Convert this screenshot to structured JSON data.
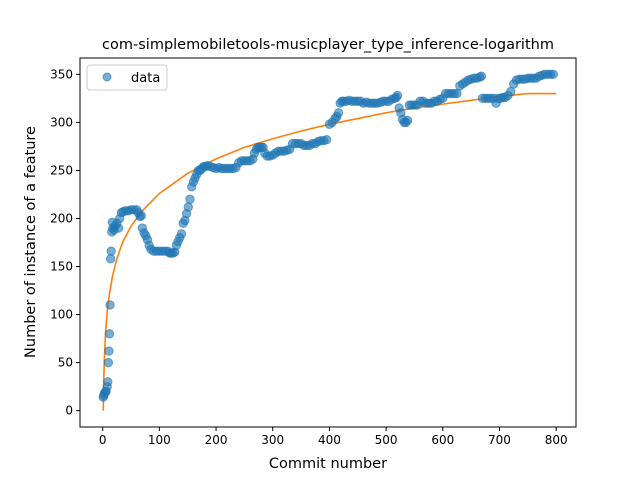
{
  "chart_data": {
    "type": "scatter",
    "title": "com-simplemobiletools-musicplayer_type_inference-logarithm",
    "xlabel": "Commit number",
    "ylabel": "Number of instance of a feature",
    "xlim": [
      -40,
      835
    ],
    "ylim": [
      -17,
      367
    ],
    "x_ticks": [
      0,
      100,
      200,
      300,
      400,
      500,
      600,
      700,
      800
    ],
    "y_ticks": [
      0,
      50,
      100,
      150,
      200,
      250,
      300,
      350
    ],
    "grid": false,
    "legend_position": "upper-left",
    "legend": [
      "data"
    ],
    "series": [
      {
        "name": "data",
        "kind": "scatter",
        "color": "#1f77b4",
        "points": [
          [
            1,
            14
          ],
          [
            2,
            16
          ],
          [
            3,
            18
          ],
          [
            5,
            20
          ],
          [
            6,
            20
          ],
          [
            8,
            25
          ],
          [
            9,
            30
          ],
          [
            10,
            50
          ],
          [
            11,
            62
          ],
          [
            12,
            80
          ],
          [
            13,
            110
          ],
          [
            14,
            158
          ],
          [
            15,
            166
          ],
          [
            16,
            186
          ],
          [
            17,
            196
          ],
          [
            18,
            190
          ],
          [
            20,
            188
          ],
          [
            22,
            192
          ],
          [
            25,
            195
          ],
          [
            28,
            190
          ],
          [
            30,
            200
          ],
          [
            33,
            206
          ],
          [
            36,
            207
          ],
          [
            40,
            208
          ],
          [
            45,
            208
          ],
          [
            50,
            209
          ],
          [
            55,
            209
          ],
          [
            60,
            209
          ],
          [
            63,
            206
          ],
          [
            66,
            202
          ],
          [
            68,
            203
          ],
          [
            70,
            190
          ],
          [
            73,
            185
          ],
          [
            76,
            182
          ],
          [
            79,
            178
          ],
          [
            82,
            172
          ],
          [
            85,
            168
          ],
          [
            90,
            166
          ],
          [
            95,
            166
          ],
          [
            100,
            166
          ],
          [
            105,
            166
          ],
          [
            110,
            166
          ],
          [
            115,
            166
          ],
          [
            118,
            164
          ],
          [
            121,
            164
          ],
          [
            124,
            164
          ],
          [
            127,
            165
          ],
          [
            130,
            172
          ],
          [
            133,
            176
          ],
          [
            136,
            180
          ],
          [
            139,
            184
          ],
          [
            142,
            195
          ],
          [
            145,
            198
          ],
          [
            148,
            205
          ],
          [
            151,
            212
          ],
          [
            154,
            220
          ],
          [
            157,
            233
          ],
          [
            160,
            238
          ],
          [
            163,
            242
          ],
          [
            166,
            246
          ],
          [
            169,
            250
          ],
          [
            172,
            250
          ],
          [
            175,
            252
          ],
          [
            178,
            254
          ],
          [
            181,
            254
          ],
          [
            185,
            255
          ],
          [
            190,
            254
          ],
          [
            195,
            253
          ],
          [
            200,
            252
          ],
          [
            205,
            253
          ],
          [
            210,
            252
          ],
          [
            215,
            252
          ],
          [
            220,
            252
          ],
          [
            225,
            252
          ],
          [
            230,
            252
          ],
          [
            235,
            253
          ],
          [
            240,
            258
          ],
          [
            245,
            260
          ],
          [
            250,
            260
          ],
          [
            255,
            260
          ],
          [
            260,
            260
          ],
          [
            265,
            262
          ],
          [
            268,
            268
          ],
          [
            271,
            272
          ],
          [
            274,
            274
          ],
          [
            277,
            274
          ],
          [
            280,
            274
          ],
          [
            283,
            274
          ],
          [
            286,
            268
          ],
          [
            290,
            265
          ],
          [
            295,
            265
          ],
          [
            300,
            266
          ],
          [
            305,
            268
          ],
          [
            310,
            270
          ],
          [
            315,
            270
          ],
          [
            320,
            270
          ],
          [
            325,
            271
          ],
          [
            330,
            272
          ],
          [
            335,
            278
          ],
          [
            340,
            278
          ],
          [
            345,
            278
          ],
          [
            350,
            278
          ],
          [
            355,
            276
          ],
          [
            360,
            276
          ],
          [
            365,
            276
          ],
          [
            370,
            278
          ],
          [
            375,
            278
          ],
          [
            380,
            280
          ],
          [
            385,
            281
          ],
          [
            390,
            281
          ],
          [
            395,
            282
          ],
          [
            400,
            298
          ],
          [
            405,
            300
          ],
          [
            410,
            304
          ],
          [
            413,
            306
          ],
          [
            416,
            310
          ],
          [
            419,
            320
          ],
          [
            422,
            322
          ],
          [
            425,
            322
          ],
          [
            430,
            322
          ],
          [
            435,
            323
          ],
          [
            440,
            322
          ],
          [
            445,
            322
          ],
          [
            450,
            322
          ],
          [
            455,
            322
          ],
          [
            460,
            320
          ],
          [
            465,
            321
          ],
          [
            470,
            320
          ],
          [
            475,
            320
          ],
          [
            480,
            320
          ],
          [
            485,
            320
          ],
          [
            490,
            321
          ],
          [
            495,
            322
          ],
          [
            500,
            322
          ],
          [
            505,
            322
          ],
          [
            510,
            324
          ],
          [
            515,
            325
          ],
          [
            518,
            326
          ],
          [
            520,
            328
          ],
          [
            523,
            315
          ],
          [
            526,
            310
          ],
          [
            529,
            303
          ],
          [
            532,
            300
          ],
          [
            535,
            300
          ],
          [
            538,
            302
          ],
          [
            541,
            318
          ],
          [
            545,
            318
          ],
          [
            550,
            318
          ],
          [
            555,
            318
          ],
          [
            560,
            322
          ],
          [
            565,
            322
          ],
          [
            570,
            320
          ],
          [
            575,
            320
          ],
          [
            580,
            320
          ],
          [
            585,
            322
          ],
          [
            590,
            322
          ],
          [
            595,
            324
          ],
          [
            600,
            325
          ],
          [
            605,
            330
          ],
          [
            610,
            330
          ],
          [
            615,
            330
          ],
          [
            620,
            330
          ],
          [
            625,
            330
          ],
          [
            630,
            338
          ],
          [
            635,
            340
          ],
          [
            640,
            342
          ],
          [
            645,
            344
          ],
          [
            650,
            345
          ],
          [
            655,
            346
          ],
          [
            660,
            346
          ],
          [
            665,
            347
          ],
          [
            668,
            348
          ],
          [
            670,
            325
          ],
          [
            675,
            325
          ],
          [
            680,
            325
          ],
          [
            685,
            325
          ],
          [
            690,
            325
          ],
          [
            694,
            320
          ],
          [
            698,
            325
          ],
          [
            702,
            325
          ],
          [
            706,
            326
          ],
          [
            710,
            326
          ],
          [
            715,
            328
          ],
          [
            720,
            332
          ],
          [
            725,
            340
          ],
          [
            730,
            344
          ],
          [
            735,
            345
          ],
          [
            740,
            345
          ],
          [
            745,
            345
          ],
          [
            750,
            346
          ],
          [
            755,
            346
          ],
          [
            760,
            346
          ],
          [
            765,
            346
          ],
          [
            770,
            348
          ],
          [
            775,
            349
          ],
          [
            780,
            350
          ],
          [
            785,
            350
          ],
          [
            790,
            350
          ],
          [
            795,
            350
          ]
        ]
      },
      {
        "name": "",
        "kind": "line",
        "color": "#ff7f0e",
        "points": [
          [
            1,
            0
          ],
          [
            2,
            34
          ],
          [
            3,
            54
          ],
          [
            5,
            80
          ],
          [
            8,
            103
          ],
          [
            12,
            122
          ],
          [
            17,
            139
          ],
          [
            25,
            158
          ],
          [
            35,
            175
          ],
          [
            50,
            192
          ],
          [
            70,
            208
          ],
          [
            100,
            226
          ],
          [
            150,
            247
          ],
          [
            200,
            262
          ],
          [
            250,
            274
          ],
          [
            300,
            283
          ],
          [
            350,
            291
          ],
          [
            400,
            298
          ],
          [
            450,
            304
          ],
          [
            500,
            310
          ],
          [
            550,
            315
          ],
          [
            600,
            319
          ],
          [
            650,
            323
          ],
          [
            700,
            327
          ],
          [
            750,
            330
          ],
          [
            800,
            330
          ]
        ]
      }
    ]
  }
}
